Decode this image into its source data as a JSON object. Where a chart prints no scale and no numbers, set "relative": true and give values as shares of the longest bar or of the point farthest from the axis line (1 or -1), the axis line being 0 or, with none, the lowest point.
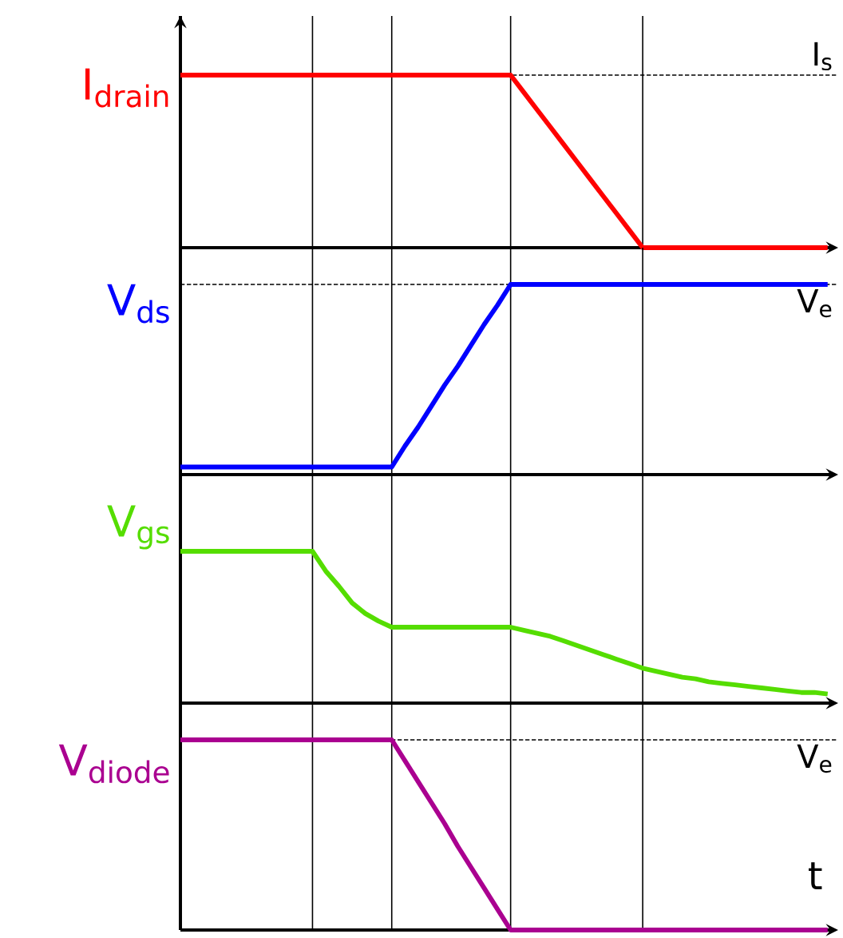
{
  "chart_data": [
    {
      "type": "line",
      "relative": true,
      "ylabel": "I$_{drain}$",
      "color": "#ff0000",
      "tick_labels": false,
      "categories": [
        null,
        null,
        null,
        null,
        null,
        null,
        null,
        null,
        null,
        null,
        null,
        null,
        null,
        null,
        null,
        null,
        null,
        null,
        null,
        null,
        null,
        null,
        null,
        null,
        null,
        null,
        null,
        null,
        null,
        null,
        null,
        null,
        null,
        null,
        null,
        null,
        null,
        null,
        null,
        null,
        null,
        null,
        null,
        null,
        null,
        null,
        null,
        null,
        null,
        null
      ],
      "values": [
        1,
        1,
        1,
        1,
        1,
        1,
        1,
        1,
        1,
        1,
        1,
        1,
        1,
        1,
        1,
        1,
        1,
        1,
        1,
        1,
        1,
        1,
        1,
        1,
        1,
        1,
        0.9,
        0.8,
        0.7,
        0.6,
        0.5,
        0.4,
        0.3,
        0.2,
        0.1,
        0,
        0,
        0,
        0,
        0,
        0,
        0,
        0,
        0,
        0,
        0,
        0,
        0,
        0,
        0
      ],
      "grid": "x",
      "ref_lines": [
        {
          "axis": "y",
          "value": 1,
          "label": "I$_{s}$",
          "line_style": "dashed",
          "color": "#000000"
        }
      ]
    },
    {
      "type": "line",
      "relative": true,
      "ylabel": "V$_{ds}$",
      "color": "#0000ff",
      "tick_labels": false,
      "categories": [
        null,
        null,
        null,
        null,
        null,
        null,
        null,
        null,
        null,
        null,
        null,
        null,
        null,
        null,
        null,
        null,
        null,
        null,
        null,
        null,
        null,
        null,
        null,
        null,
        null,
        null,
        null,
        null,
        null,
        null,
        null,
        null,
        null,
        null,
        null,
        null,
        null,
        null,
        null,
        null,
        null,
        null,
        null,
        null,
        null,
        null,
        null,
        null,
        null,
        null
      ],
      "values": [
        0.04,
        0.04,
        0.04,
        0.04,
        0.04,
        0.04,
        0.04,
        0.04,
        0.04,
        0.04,
        0.04,
        0.04,
        0.04,
        0.04,
        0.04,
        0.04,
        0.04,
        0.15,
        0.25,
        0.36,
        0.47,
        0.57,
        0.68,
        0.79,
        0.89,
        1,
        1,
        1,
        1,
        1,
        1,
        1,
        1,
        1,
        1,
        1,
        1,
        1,
        1,
        1,
        1,
        1,
        1,
        1,
        1,
        1,
        1,
        1,
        1,
        1
      ],
      "grid": "x",
      "ref_lines": [
        {
          "axis": "y",
          "value": 1,
          "label": "V$_{e}$",
          "line_style": "dashed",
          "color": "#000000"
        }
      ]
    },
    {
      "type": "line",
      "relative": true,
      "ylabel": "V$_{gs}$",
      "color": "#55dd00",
      "tick_labels": false,
      "categories": [
        null,
        null,
        null,
        null,
        null,
        null,
        null,
        null,
        null,
        null,
        null,
        null,
        null,
        null,
        null,
        null,
        null,
        null,
        null,
        null,
        null,
        null,
        null,
        null,
        null,
        null,
        null,
        null,
        null,
        null,
        null,
        null,
        null,
        null,
        null,
        null,
        null,
        null,
        null,
        null,
        null,
        null,
        null,
        null,
        null,
        null,
        null,
        null,
        null,
        null
      ],
      "values": [
        1,
        1,
        1,
        1,
        1,
        1,
        1,
        1,
        1,
        1,
        1,
        0.87,
        0.77,
        0.66,
        0.59,
        0.54,
        0.5,
        0.5,
        0.5,
        0.5,
        0.5,
        0.5,
        0.5,
        0.5,
        0.5,
        0.5,
        0.48,
        0.46,
        0.44,
        0.41,
        0.38,
        0.35,
        0.32,
        0.29,
        0.26,
        0.23,
        0.21,
        0.19,
        0.17,
        0.16,
        0.14,
        0.13,
        0.12,
        0.11,
        0.1,
        0.09,
        0.08,
        0.07,
        0.07,
        0.06
      ],
      "grid": "x"
    },
    {
      "type": "line",
      "relative": true,
      "ylabel": "V$_{diode}$",
      "xlabel": "t",
      "color": "#aa0090",
      "tick_labels": false,
      "categories": [
        null,
        null,
        null,
        null,
        null,
        null,
        null,
        null,
        null,
        null,
        null,
        null,
        null,
        null,
        null,
        null,
        null,
        null,
        null,
        null,
        null,
        null,
        null,
        null,
        null,
        null,
        null,
        null,
        null,
        null,
        null,
        null,
        null,
        null,
        null,
        null,
        null,
        null,
        null,
        null,
        null,
        null,
        null,
        null,
        null,
        null,
        null,
        null,
        null,
        null
      ],
      "values": [
        1,
        1,
        1,
        1,
        1,
        1,
        1,
        1,
        1,
        1,
        1,
        1,
        1,
        1,
        1,
        1,
        1,
        0.89,
        0.78,
        0.67,
        0.56,
        0.44,
        0.33,
        0.22,
        0.11,
        0,
        0,
        0,
        0,
        0,
        0,
        0,
        0,
        0,
        0,
        0,
        0,
        0,
        0,
        0,
        0,
        0,
        0,
        0,
        0,
        0,
        0,
        0,
        0,
        0
      ],
      "grid": "x",
      "ref_lines": [
        {
          "axis": "y",
          "value": 1,
          "label": "V$_{e}$",
          "line_style": "dashed",
          "color": "#000000"
        }
      ]
    }
  ]
}
